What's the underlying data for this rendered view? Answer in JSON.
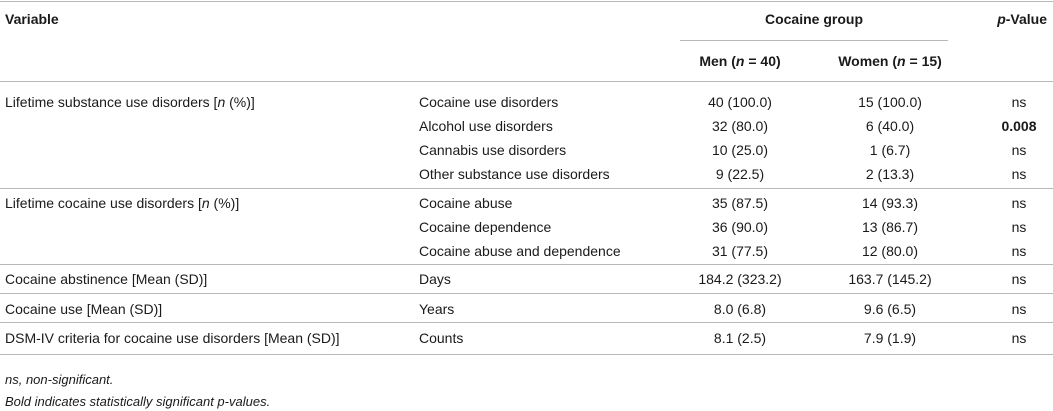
{
  "header": {
    "variable": "Variable",
    "group": "Cocaine group",
    "pvalue_prefix": "p",
    "pvalue_suffix": "-Value",
    "men_label": "Men (",
    "men_n": "n",
    "men_eq": " = 40)",
    "women_label": "Women (",
    "women_n": "n",
    "women_eq": " = 15)"
  },
  "groups": [
    {
      "variable_pre": "Lifetime substance use disorders [",
      "variable_italic": "n",
      "variable_post": " (%)]",
      "rows": [
        {
          "item": "Cocaine use disorders",
          "men": "40 (100.0)",
          "women": "15 (100.0)",
          "p": "ns",
          "bold": false
        },
        {
          "item": "Alcohol use disorders",
          "men": "32 (80.0)",
          "women": "6 (40.0)",
          "p": "0.008",
          "bold": true
        },
        {
          "item": "Cannabis use disorders",
          "men": "10 (25.0)",
          "women": "1 (6.7)",
          "p": "ns",
          "bold": false
        },
        {
          "item": "Other substance use disorders",
          "men": "9 (22.5)",
          "women": "2 (13.3)",
          "p": "ns",
          "bold": false
        }
      ]
    },
    {
      "variable_pre": "Lifetime cocaine use disorders [",
      "variable_italic": "n",
      "variable_post": " (%)]",
      "rows": [
        {
          "item": "Cocaine abuse",
          "men": "35 (87.5)",
          "women": "14 (93.3)",
          "p": "ns",
          "bold": false
        },
        {
          "item": "Cocaine dependence",
          "men": "36 (90.0)",
          "women": "13 (86.7)",
          "p": "ns",
          "bold": false
        },
        {
          "item": "Cocaine abuse and dependence",
          "men": "31 (77.5)",
          "women": "12 (80.0)",
          "p": "ns",
          "bold": false
        }
      ]
    },
    {
      "variable_pre": "Cocaine abstinence [Mean (SD)]",
      "variable_italic": "",
      "variable_post": "",
      "rows": [
        {
          "item": "Days",
          "men": "184.2 (323.2)",
          "women": "163.7 (145.2)",
          "p": "ns",
          "bold": false
        }
      ]
    },
    {
      "variable_pre": "Cocaine use [Mean (SD)]",
      "variable_italic": "",
      "variable_post": "",
      "rows": [
        {
          "item": "Years",
          "men": "8.0 (6.8)",
          "women": "9.6 (6.5)",
          "p": "ns",
          "bold": false
        }
      ]
    },
    {
      "variable_pre": "DSM-IV criteria for cocaine use disorders [Mean (SD)]",
      "variable_italic": "",
      "variable_post": "",
      "rows": [
        {
          "item": "Counts",
          "men": "8.1 (2.5)",
          "women": "7.9 (1.9)",
          "p": "ns",
          "bold": false
        }
      ]
    }
  ],
  "footnotes": [
    "ns, non-significant.",
    "Bold indicates statistically significant p-values."
  ]
}
